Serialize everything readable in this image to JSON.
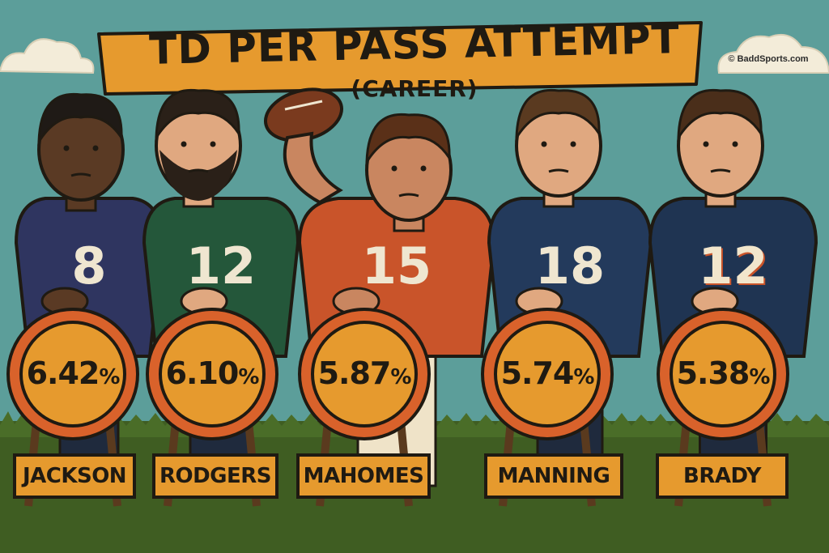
{
  "watermark": "© BaddSports.com",
  "chart_data": {
    "type": "bar",
    "title": "TD PER PASS ATTEMPT",
    "subtitle": "(CAREER)",
    "categories": [
      "JACKSON",
      "RODGERS",
      "MAHOMES",
      "MANNING",
      "BRADY"
    ],
    "values": [
      6.42,
      6.1,
      5.87,
      5.74,
      5.38
    ],
    "value_labels": [
      "6.42",
      "6.10",
      "5.87",
      "5.74",
      "5.38"
    ],
    "unit": "%",
    "jersey_numbers": [
      "8",
      "12",
      "15",
      "18",
      "12"
    ],
    "jersey_colors": [
      "#2f3560",
      "#24573a",
      "#c9542a",
      "#233a5c",
      "#1f3452"
    ],
    "accent_color": "#e69a2e"
  }
}
